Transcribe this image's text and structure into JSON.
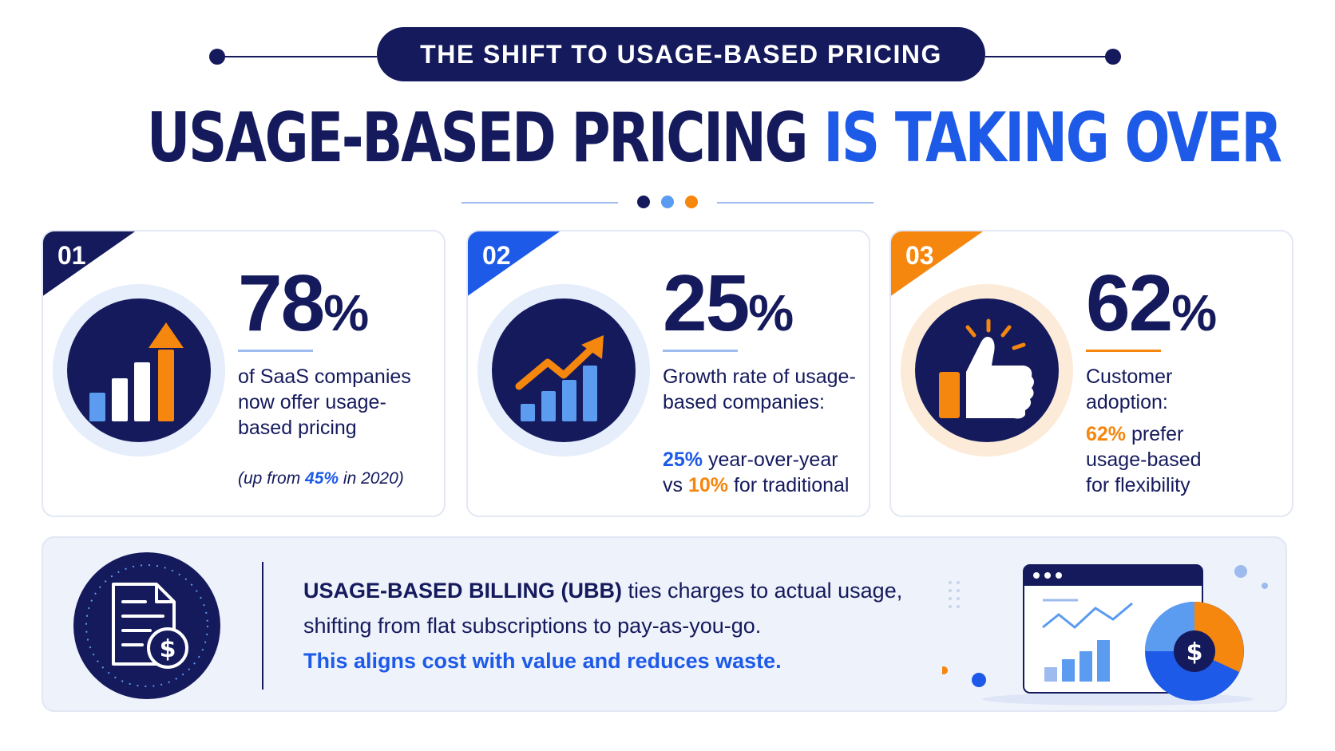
{
  "header": {
    "pill_label": "THE SHIFT TO USAGE-BASED PRICING",
    "headline_dark": "USAGE-BASED PRICING",
    "headline_blue": "IS TAKING OVER"
  },
  "colors": {
    "navy": "#141a5c",
    "blue": "#1d5ae8",
    "light_blue": "#5b9bf0",
    "orange": "#f5860e"
  },
  "cards": [
    {
      "badge": "01",
      "stat_number": "78",
      "stat_unit": "%",
      "icon": "bar-chart-arrow-up-icon",
      "desc": "of SaaS companies now offer usage-based pricing",
      "note_pre": "(up from ",
      "note_value": "45%",
      "note_post": " in 2020)"
    },
    {
      "badge": "02",
      "stat_number": "25",
      "stat_unit": "%",
      "icon": "growth-chart-icon",
      "desc": "Growth rate of usage-based companies:",
      "value_a": "25%",
      "text_a": " year-over-year",
      "text_b_pre": "vs ",
      "value_b": "10%",
      "text_b_post": " for traditional"
    },
    {
      "badge": "03",
      "stat_number": "62",
      "stat_unit": "%",
      "icon": "thumbs-up-icon",
      "desc": "Customer adoption:",
      "value_a": "62%",
      "text_a": " prefer usage-based for flexibility"
    }
  ],
  "bottom": {
    "icon": "invoice-dollar-icon",
    "term": "USAGE-BASED BILLING (UBB)",
    "line1_rest": " ties charges to actual usage,",
    "line2": "shifting from flat subscriptions to pay-as-you-go.",
    "line3": "This aligns cost with value and reduces waste.",
    "illustration_icon": "dashboard-dollar-pie-icon"
  }
}
